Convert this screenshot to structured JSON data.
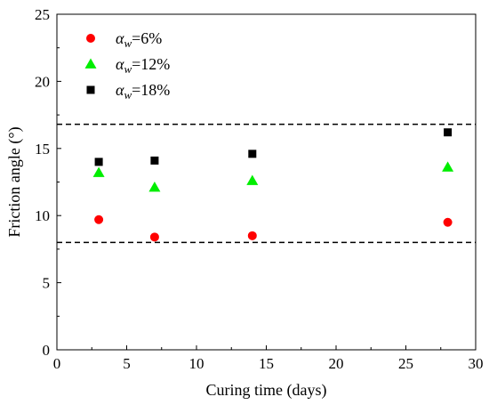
{
  "chart_data": {
    "type": "scatter",
    "title": "",
    "xlabel": "Curing time (days)",
    "ylabel": "Friction angle (°)",
    "xlim": [
      0,
      30
    ],
    "ylim": [
      0,
      25
    ],
    "xticks": [
      0,
      5,
      10,
      15,
      20,
      25,
      30
    ],
    "yticks": [
      0,
      5,
      10,
      15,
      20,
      25
    ],
    "grid": false,
    "legend_position": "top-left",
    "reference_lines": [
      {
        "orientation": "horizontal",
        "y": 16.8,
        "style": "dashed",
        "color": "#000000"
      },
      {
        "orientation": "horizontal",
        "y": 8.0,
        "style": "dashed",
        "color": "#000000"
      }
    ],
    "series": [
      {
        "name": "αw=6%",
        "name_symbol": "α",
        "name_subscript": "w",
        "name_suffix": "=6%",
        "marker": "circle",
        "color": "#ff0000",
        "x": [
          3,
          7,
          14,
          28
        ],
        "y": [
          9.7,
          8.4,
          8.5,
          9.5
        ]
      },
      {
        "name": "αw=12%",
        "name_symbol": "α",
        "name_subscript": "w",
        "name_suffix": "=12%",
        "marker": "triangle",
        "color": "#00ee00",
        "x": [
          3,
          7,
          14,
          28
        ],
        "y": [
          13.2,
          12.1,
          12.6,
          13.6
        ]
      },
      {
        "name": "αw=18%",
        "name_symbol": "α",
        "name_subscript": "w",
        "name_suffix": "=18%",
        "marker": "square",
        "color": "#000000",
        "x": [
          3,
          7,
          14,
          28
        ],
        "y": [
          14.0,
          14.1,
          14.6,
          16.2
        ]
      }
    ]
  }
}
